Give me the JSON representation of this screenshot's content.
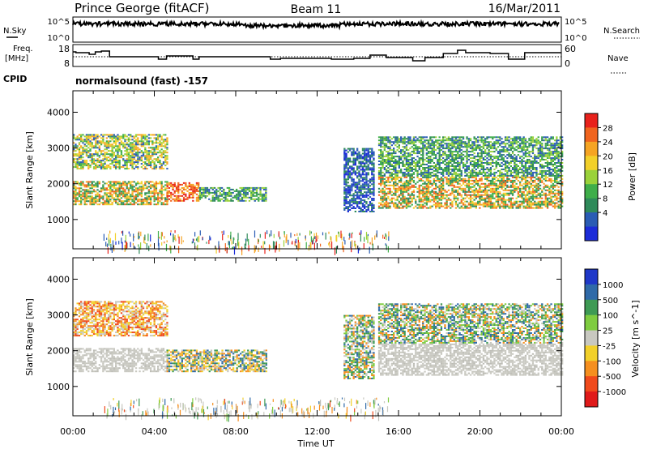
{
  "header": {
    "station": "Prince George (fitACF)",
    "beam": "Beam 11",
    "date": "16/Mar/2011"
  },
  "panels": {
    "nsky_label": "N.Sky",
    "nsky_ticks": [
      "10^5",
      "10^0"
    ],
    "nsearch_label": "N.Search",
    "nsearch_ticks": [
      "10^5",
      "10^0"
    ],
    "freq_label_1": "Freq.",
    "freq_label_2": "[MHz]",
    "freq_ticks": [
      "18",
      "8"
    ],
    "nave_label": "Nave",
    "nave_ticks": [
      "60",
      "0"
    ],
    "cpid_label": "CPID",
    "cpid_text": "normalsound (fast) -157"
  },
  "power_colorbar": {
    "label": "Power [dB]",
    "ticks": [
      "28",
      "24",
      "20",
      "16",
      "12",
      "8",
      "4"
    ],
    "colors": [
      "#e8221c",
      "#f0641e",
      "#f5a423",
      "#f2d02a",
      "#9ad23a",
      "#3fae4a",
      "#2f8a5a",
      "#2a5cb4",
      "#1c2cd8"
    ]
  },
  "velocity_colorbar": {
    "label": "Velocity [m s^-1]",
    "ticks": [
      "1000",
      "500",
      "100",
      "25",
      "-25",
      "-100",
      "-500",
      "-1000"
    ],
    "colors": [
      "#1f38c8",
      "#2f6aa8",
      "#3e9a54",
      "#7fcc40",
      "#c8c8c0",
      "#f2d02a",
      "#f58f1f",
      "#f04a1c",
      "#e01a1a"
    ]
  },
  "chart_data": [
    {
      "type": "heatmap",
      "name": "power",
      "xlabel": "",
      "ylabel": "Slant Range [km]",
      "xlim": [
        0,
        24
      ],
      "ylim": [
        180,
        4600
      ],
      "yticks": [
        1000,
        2000,
        3000,
        4000
      ],
      "regions": [
        {
          "x0": 0.0,
          "x1": 4.6,
          "y0": 2400,
          "y1": 3350,
          "level": "medium-high"
        },
        {
          "x0": 0.0,
          "x1": 4.6,
          "y0": 1400,
          "y1": 2050,
          "level": "high"
        },
        {
          "x0": 4.6,
          "x1": 6.2,
          "y0": 1500,
          "y1": 2000,
          "level": "very-high"
        },
        {
          "x0": 6.2,
          "x1": 9.5,
          "y0": 1500,
          "y1": 1900,
          "level": "medium"
        },
        {
          "x0": 13.3,
          "x1": 14.8,
          "y0": 1200,
          "y1": 3000,
          "level": "low"
        },
        {
          "x0": 15.0,
          "x1": 24.0,
          "y0": 1300,
          "y1": 2200,
          "level": "high"
        },
        {
          "x0": 15.0,
          "x1": 24.0,
          "y0": 2200,
          "y1": 3300,
          "level": "medium"
        }
      ]
    },
    {
      "type": "heatmap",
      "name": "velocity",
      "xlabel": "Time UT",
      "ylabel": "Slant Range [km]",
      "xlim": [
        0,
        24
      ],
      "ylim": [
        180,
        4600
      ],
      "yticks": [
        1000,
        2000,
        3000,
        4000
      ],
      "xtick_labels": [
        "00:00",
        "04:00",
        "08:00",
        "12:00",
        "16:00",
        "20:00",
        "00:00"
      ],
      "regions": [
        {
          "x0": 0.0,
          "x1": 4.6,
          "y0": 2400,
          "y1": 3350,
          "level": "negative"
        },
        {
          "x0": 0.0,
          "x1": 4.6,
          "y0": 1400,
          "y1": 2050,
          "level": "ground-scatter"
        },
        {
          "x0": 4.6,
          "x1": 9.5,
          "y0": 1400,
          "y1": 2000,
          "level": "mixed"
        },
        {
          "x0": 13.3,
          "x1": 14.8,
          "y0": 1200,
          "y1": 3000,
          "level": "positive"
        },
        {
          "x0": 15.0,
          "x1": 24.0,
          "y0": 1300,
          "y1": 2200,
          "level": "ground-scatter"
        },
        {
          "x0": 15.0,
          "x1": 24.0,
          "y0": 2200,
          "y1": 3300,
          "level": "positive"
        }
      ]
    }
  ]
}
